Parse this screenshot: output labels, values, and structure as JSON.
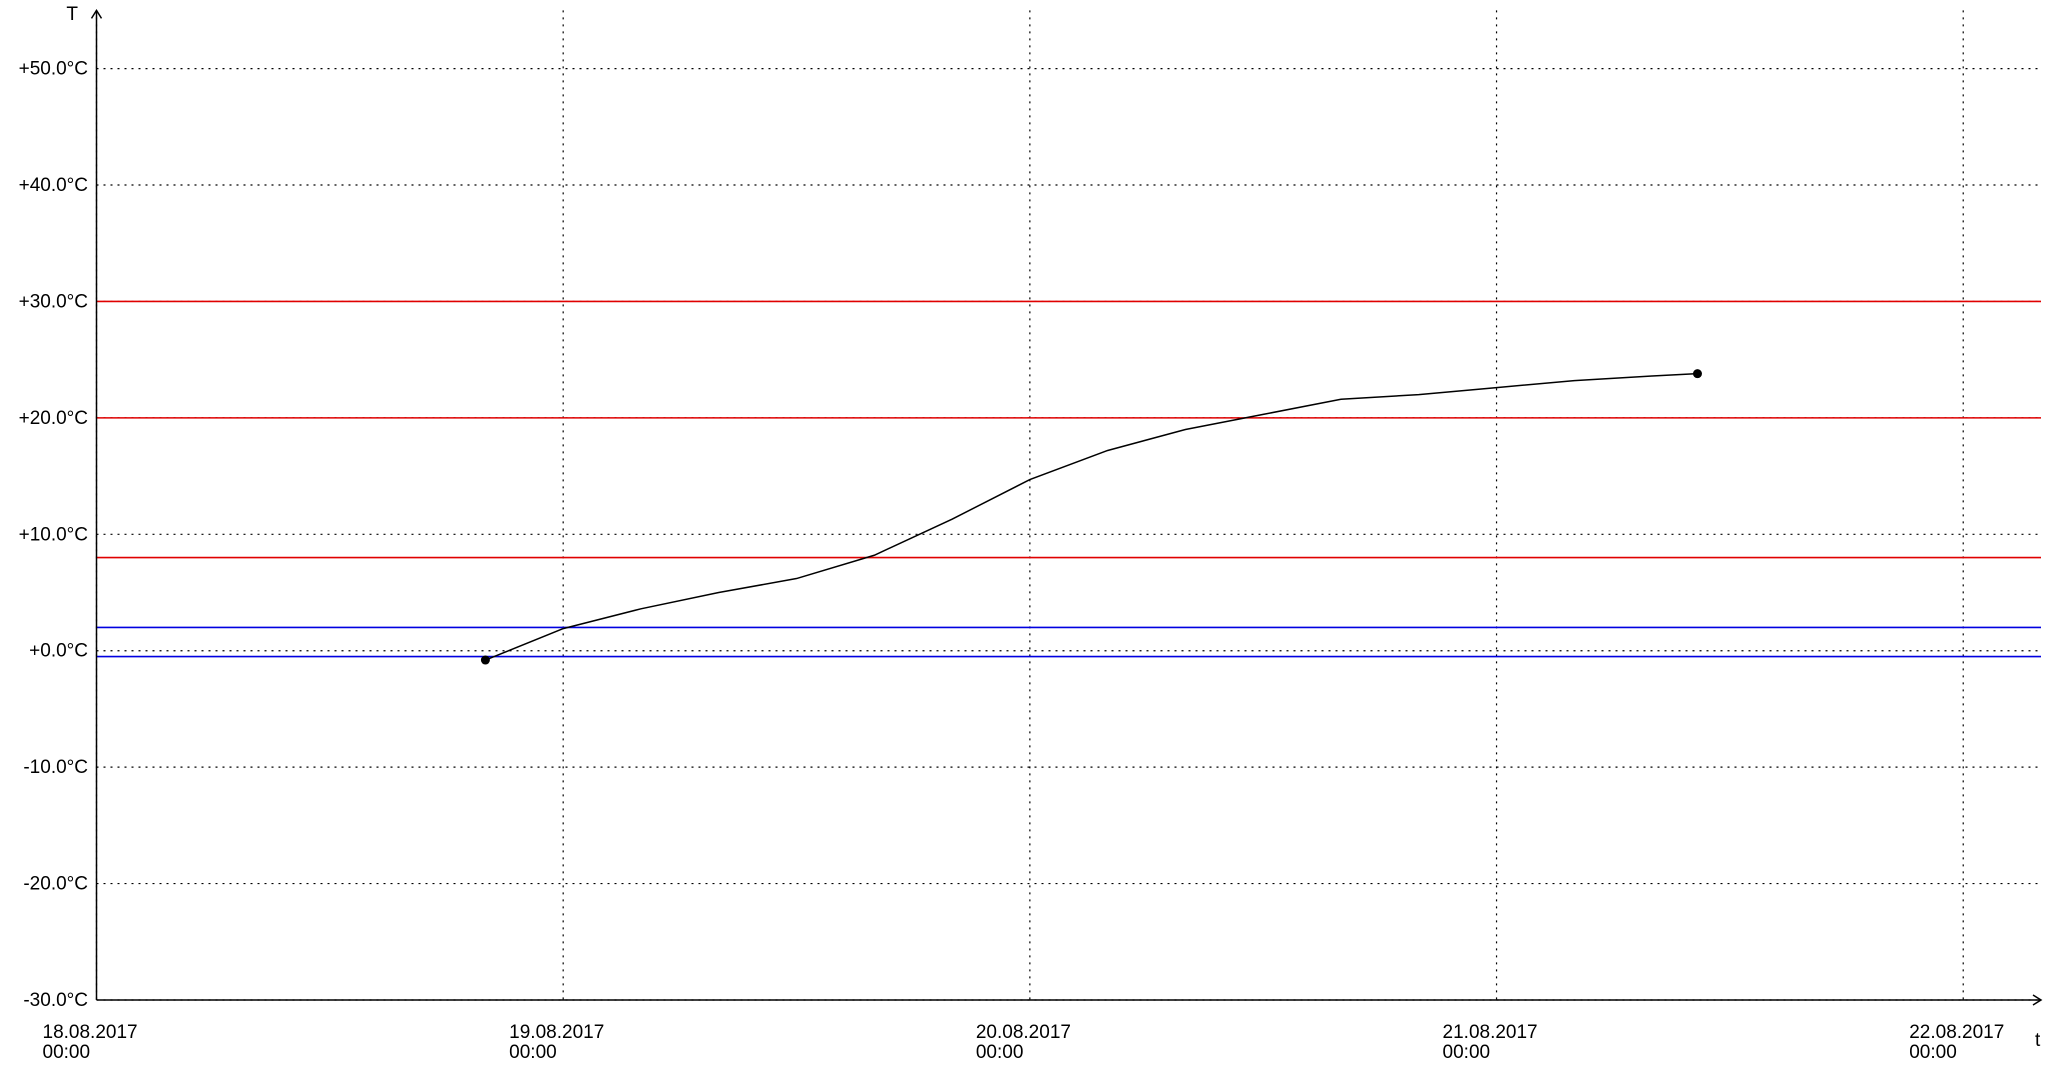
{
  "chart_data": {
    "type": "line",
    "y_axis_label": "T",
    "x_axis_label": "t",
    "xlim": [
      "18.08.2017 00:00",
      "22.08.2017 04:00"
    ],
    "ylim": [
      -30,
      55
    ],
    "xticks": [
      {
        "value": "18.08.2017 00:00",
        "label": [
          "18.08.2017",
          "00:00"
        ]
      },
      {
        "value": "19.08.2017 00:00",
        "label": [
          "19.08.2017",
          "00:00"
        ]
      },
      {
        "value": "20.08.2017 00:00",
        "label": [
          "20.08.2017",
          "00:00"
        ]
      },
      {
        "value": "21.08.2017 00:00",
        "label": [
          "21.08.2017",
          "00:00"
        ]
      },
      {
        "value": "22.08.2017 00:00",
        "label": [
          "22.08.2017",
          "00:00"
        ]
      }
    ],
    "yticks": [
      {
        "value": -30,
        "label": "-30.0°C"
      },
      {
        "value": -20,
        "label": "-20.0°C"
      },
      {
        "value": -10,
        "label": "-10.0°C"
      },
      {
        "value": 0,
        "label": "+0.0°C"
      },
      {
        "value": 10,
        "label": "+10.0°C"
      },
      {
        "value": 20,
        "label": "+20.0°C"
      },
      {
        "value": 30,
        "label": "+30.0°C"
      },
      {
        "value": 40,
        "label": "+40.0°C"
      },
      {
        "value": 50,
        "label": "+50.0°C"
      }
    ],
    "grid": true,
    "thresholds": [
      {
        "value": 30,
        "color": "#e00000"
      },
      {
        "value": 20,
        "color": "#e00000"
      },
      {
        "value": 8,
        "color": "#e00000"
      },
      {
        "value": 2,
        "color": "#0000e0"
      },
      {
        "value": -0.5,
        "color": "#0000e0"
      }
    ],
    "series": [
      {
        "color": "#000000",
        "x": [
          "18.08.2017 20:00",
          "19.08.2017 00:00",
          "19.08.2017 04:00",
          "19.08.2017 08:00",
          "19.08.2017 12:00",
          "19.08.2017 16:00",
          "19.08.2017 20:00",
          "20.08.2017 00:00",
          "20.08.2017 04:00",
          "20.08.2017 08:00",
          "20.08.2017 12:00",
          "20.08.2017 16:00",
          "20.08.2017 20:00",
          "21.08.2017 00:00",
          "21.08.2017 04:00",
          "21.08.2017 08:00",
          "21.08.2017 10:20"
        ],
        "values": [
          -0.8,
          1.9,
          3.6,
          5.0,
          6.2,
          8.2,
          11.3,
          14.7,
          17.2,
          19.0,
          20.3,
          21.6,
          22.0,
          22.6,
          23.2,
          23.6,
          23.8
        ]
      }
    ]
  }
}
